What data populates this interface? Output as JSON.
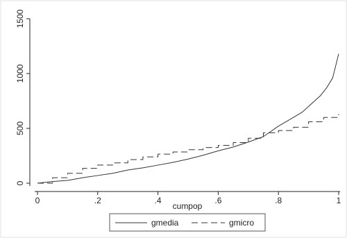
{
  "chart_data": {
    "type": "line",
    "xlabel": "cumpop",
    "ylabel": "",
    "xlim": [
      0,
      1
    ],
    "ylim": [
      0,
      1500
    ],
    "x_ticks": [
      {
        "value": 0,
        "label": "0"
      },
      {
        "value": 0.2,
        "label": ".2"
      },
      {
        "value": 0.4,
        "label": ".4"
      },
      {
        "value": 0.6,
        "label": ".6"
      },
      {
        "value": 0.8,
        "label": ".8"
      },
      {
        "value": 1,
        "label": "1"
      }
    ],
    "y_ticks": [
      {
        "value": 0,
        "label": "0"
      },
      {
        "value": 500,
        "label": "500"
      },
      {
        "value": 1000,
        "label": "1000"
      },
      {
        "value": 1500,
        "label": "1500"
      }
    ],
    "grid": false,
    "legend_position": "bottom",
    "series": [
      {
        "name": "gmedia",
        "style": "solid",
        "color": "#333333",
        "x": [
          0,
          0.05,
          0.1,
          0.15,
          0.2,
          0.25,
          0.3,
          0.35,
          0.4,
          0.45,
          0.5,
          0.55,
          0.6,
          0.65,
          0.7,
          0.75,
          0.8,
          0.85,
          0.88,
          0.9,
          0.92,
          0.94,
          0.96,
          0.98,
          1.0
        ],
        "y": [
          0,
          15,
          25,
          50,
          70,
          90,
          120,
          140,
          165,
          190,
          220,
          255,
          295,
          330,
          375,
          425,
          520,
          600,
          650,
          700,
          750,
          800,
          870,
          960,
          1180
        ]
      },
      {
        "name": "gmicro",
        "style": "dashed",
        "color": "#333333",
        "x": [
          0,
          0.05,
          0.1,
          0.15,
          0.2,
          0.25,
          0.3,
          0.35,
          0.4,
          0.45,
          0.5,
          0.55,
          0.6,
          0.65,
          0.7,
          0.75,
          0.8,
          0.85,
          0.9,
          0.95,
          1.0
        ],
        "y": [
          0,
          50,
          90,
          135,
          165,
          185,
          215,
          240,
          265,
          285,
          305,
          325,
          345,
          370,
          410,
          460,
          480,
          510,
          560,
          600,
          630
        ]
      }
    ]
  }
}
